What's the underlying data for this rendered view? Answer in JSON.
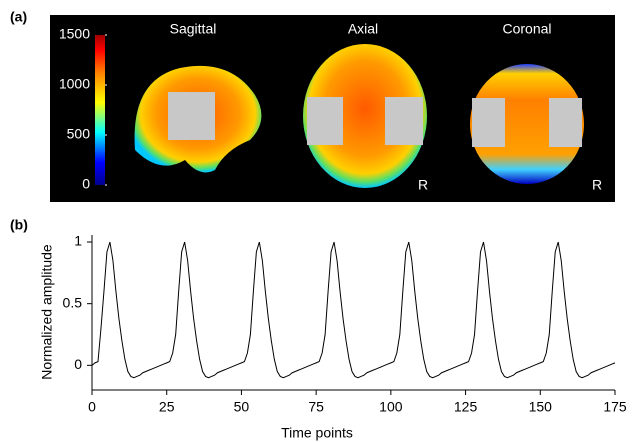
{
  "panel_labels": [
    "(a)",
    "(b)"
  ],
  "images": {
    "titles": [
      "Sagittal",
      "Axial",
      "Coronal"
    ],
    "orientation_marks": [
      "R",
      "R"
    ],
    "colorbar": {
      "lim": [
        0,
        1500
      ],
      "ticks": [
        0,
        500,
        1000,
        1500
      ]
    }
  },
  "chart_data": {
    "type": "line",
    "xlabel": "Time points",
    "ylabel": "Normalized amplitude",
    "xlim": [
      0,
      175
    ],
    "ylim": [
      -0.2,
      1.05
    ],
    "xticks": [
      0,
      25,
      50,
      75,
      100,
      125,
      150,
      175
    ],
    "yticks": [
      0,
      0.5,
      1
    ],
    "color": "#000000",
    "x": [
      0,
      1,
      2,
      3,
      4,
      5,
      6,
      7,
      8,
      9,
      10,
      11,
      12,
      13,
      14,
      15,
      16,
      17,
      18,
      19,
      20,
      21,
      22,
      23,
      24,
      25,
      26,
      27,
      28,
      29,
      30,
      31,
      32,
      33,
      34,
      35,
      36,
      37,
      38,
      39,
      40,
      41,
      42,
      43,
      44,
      45,
      46,
      47,
      48,
      49,
      50,
      51,
      52,
      53,
      54,
      55,
      56,
      57,
      58,
      59,
      60,
      61,
      62,
      63,
      64,
      65,
      66,
      67,
      68,
      69,
      70,
      71,
      72,
      73,
      74,
      75,
      76,
      77,
      78,
      79,
      80,
      81,
      82,
      83,
      84,
      85,
      86,
      87,
      88,
      89,
      90,
      91,
      92,
      93,
      94,
      95,
      96,
      97,
      98,
      99,
      100,
      101,
      102,
      103,
      104,
      105,
      106,
      107,
      108,
      109,
      110,
      111,
      112,
      113,
      114,
      115,
      116,
      117,
      118,
      119,
      120,
      121,
      122,
      123,
      124,
      125,
      126,
      127,
      128,
      129,
      130,
      131,
      132,
      133,
      134,
      135,
      136,
      137,
      138,
      139,
      140,
      141,
      142,
      143,
      144,
      145,
      146,
      147,
      148,
      149,
      150,
      151,
      152,
      153,
      154,
      155,
      156,
      157,
      158,
      159,
      160,
      161,
      162,
      163,
      164,
      165,
      166,
      167,
      168,
      169,
      170,
      171,
      172,
      173,
      174,
      175
    ],
    "values": [
      0,
      0.02,
      0.03,
      0.3,
      0.6,
      0.92,
      1,
      0.85,
      0.6,
      0.38,
      0.2,
      0.05,
      -0.05,
      -0.09,
      -0.1,
      -0.09,
      -0.08,
      -0.06,
      -0.05,
      -0.04,
      -0.03,
      -0.02,
      -0.01,
      0,
      0.01,
      0.02,
      0.03,
      0.1,
      0.25,
      0.6,
      0.92,
      1,
      0.85,
      0.6,
      0.38,
      0.2,
      0.05,
      -0.05,
      -0.09,
      -0.1,
      -0.09,
      -0.08,
      -0.06,
      -0.05,
      -0.04,
      -0.03,
      -0.02,
      -0.01,
      0,
      0.01,
      0.02,
      0.03,
      0.1,
      0.25,
      0.6,
      0.92,
      1,
      0.85,
      0.6,
      0.38,
      0.2,
      0.05,
      -0.05,
      -0.09,
      -0.1,
      -0.09,
      -0.08,
      -0.06,
      -0.05,
      -0.04,
      -0.03,
      -0.02,
      -0.01,
      0,
      0.01,
      0.02,
      0.03,
      0.1,
      0.25,
      0.6,
      0.92,
      1,
      0.85,
      0.6,
      0.38,
      0.2,
      0.05,
      -0.05,
      -0.09,
      -0.1,
      -0.09,
      -0.08,
      -0.06,
      -0.05,
      -0.04,
      -0.03,
      -0.02,
      -0.01,
      0,
      0.01,
      0.02,
      0.03,
      0.1,
      0.25,
      0.6,
      0.92,
      1,
      0.85,
      0.6,
      0.38,
      0.2,
      0.05,
      -0.05,
      -0.09,
      -0.1,
      -0.09,
      -0.08,
      -0.06,
      -0.05,
      -0.04,
      -0.03,
      -0.02,
      -0.01,
      0,
      0.01,
      0.02,
      0.03,
      0.1,
      0.25,
      0.6,
      0.92,
      1,
      0.85,
      0.6,
      0.38,
      0.2,
      0.05,
      -0.05,
      -0.09,
      -0.1,
      -0.09,
      -0.08,
      -0.06,
      -0.05,
      -0.04,
      -0.03,
      -0.02,
      -0.01,
      0,
      0.01,
      0.02,
      0.03,
      0.1,
      0.25,
      0.6,
      0.92,
      1,
      0.85,
      0.6,
      0.38,
      0.2,
      0.05,
      -0.05,
      -0.09,
      -0.1,
      -0.09,
      -0.08,
      -0.06,
      -0.05,
      -0.04,
      -0.03,
      -0.02,
      -0.01,
      0,
      0.01,
      0.02
    ]
  }
}
